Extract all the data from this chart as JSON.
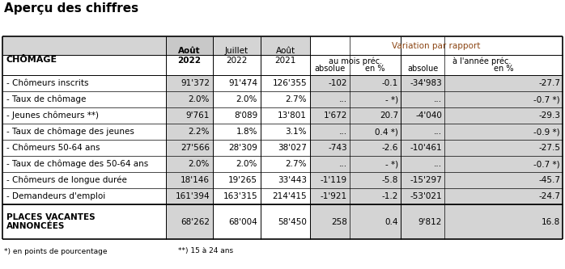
{
  "title": "Aperçu des chiffres",
  "variation_label": "Variation par rapport",
  "variation_color": "#8B4513",
  "col_headers_row1": [
    "CHÔMAGE",
    "Août\n2022",
    "Juillet\n2022",
    "Août\n2021",
    "au mois préc.",
    "à l'année préc."
  ],
  "col_subheaders": [
    "absolue",
    "en %",
    "absolue",
    "en %"
  ],
  "rows": [
    [
      "- Chômeurs inscrits",
      "91'372",
      "91'474",
      "126'355",
      "-102",
      "-0.1",
      "-34'983",
      "-27.7"
    ],
    [
      "- Taux de chômage",
      "2.0%",
      "2.0%",
      "2.7%",
      "...",
      "- *)",
      "...",
      "-0.7 *)"
    ],
    [
      "- Jeunes chômeurs **)",
      "9'761",
      "8'089",
      "13'801",
      "1'672",
      "20.7",
      "-4'040",
      "-29.3"
    ],
    [
      "- Taux de chômage des jeunes",
      "2.2%",
      "1.8%",
      "3.1%",
      "...",
      "0.4 *)",
      "...",
      "-0.9 *)"
    ],
    [
      "- Chômeurs 50-64 ans",
      "27'566",
      "28'309",
      "38'027",
      "-743",
      "-2.6",
      "-10'461",
      "-27.5"
    ],
    [
      "- Taux de chômage des 50-64 ans",
      "2.0%",
      "2.0%",
      "2.7%",
      "...",
      "- *)",
      "...",
      "-0.7 *)"
    ],
    [
      "- Chômeurs de longue durée",
      "18'146",
      "19'265",
      "33'443",
      "-1'119",
      "-5.8",
      "-15'297",
      "-45.7"
    ],
    [
      "- Demandeurs d'emploi",
      "161'394",
      "163'315",
      "214'415",
      "-1'921",
      "-1.2",
      "-53'021",
      "-24.7"
    ]
  ],
  "places_vacantes_label": "PLACES VACANTES\nANNONCÉES",
  "places_vacantes_values": [
    "68'262",
    "68'004",
    "58'450",
    "258",
    "0.4",
    "9'812",
    "16.8"
  ],
  "footnote1": "*) en points de pourcentage",
  "footnote2": "**) 15 à 24 ans",
  "bg_white": "#ffffff",
  "bg_gray_light": "#d4d4d4",
  "bg_gray_medium": "#c8c8c8",
  "border_color": "#000000",
  "text_color": "#000000",
  "title_color": "#000000"
}
